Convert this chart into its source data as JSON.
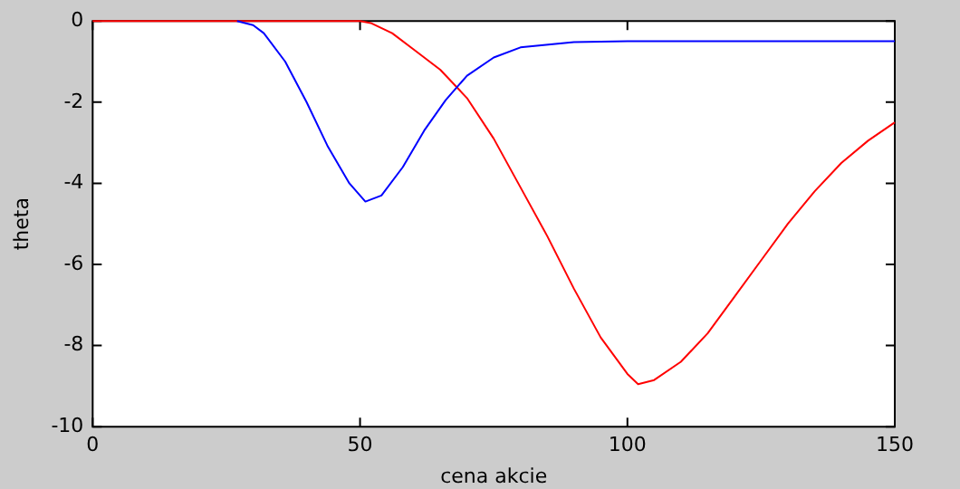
{
  "chart_data": {
    "type": "line",
    "xlabel": "cena akcie",
    "ylabel": "theta",
    "xlim": [
      0,
      150
    ],
    "ylim": [
      -10,
      0
    ],
    "xticks": [
      0,
      50,
      100,
      150
    ],
    "yticks": [
      -10,
      -8,
      -6,
      -4,
      -2,
      0
    ],
    "grid": false,
    "legend": false,
    "marker": "none",
    "line_style": "solid",
    "series": [
      {
        "color": "#0000ff",
        "x": [
          27,
          30,
          32,
          36,
          40,
          44,
          48,
          51,
          54,
          58,
          62,
          66,
          70,
          75,
          80,
          90,
          100,
          120,
          150
        ],
        "values": [
          0,
          -0.1,
          -0.3,
          -1.0,
          -2.0,
          -3.1,
          -4.0,
          -4.45,
          -4.3,
          -3.6,
          -2.7,
          -1.95,
          -1.35,
          -0.9,
          -0.65,
          -0.52,
          -0.5,
          -0.5,
          -0.5
        ]
      },
      {
        "color": "#ff0000",
        "x": [
          0,
          20,
          40,
          50,
          52,
          56,
          60,
          65,
          70,
          75,
          80,
          85,
          90,
          95,
          100,
          102,
          105,
          110,
          115,
          120,
          125,
          130,
          135,
          140,
          145,
          150
        ],
        "values": [
          0,
          0,
          0,
          0,
          -0.05,
          -0.3,
          -0.7,
          -1.2,
          -1.9,
          -2.9,
          -4.1,
          -5.3,
          -6.6,
          -7.8,
          -8.7,
          -8.95,
          -8.85,
          -8.4,
          -7.7,
          -6.8,
          -5.9,
          -5.0,
          -4.2,
          -3.5,
          -2.95,
          -2.5
        ]
      }
    ]
  }
}
